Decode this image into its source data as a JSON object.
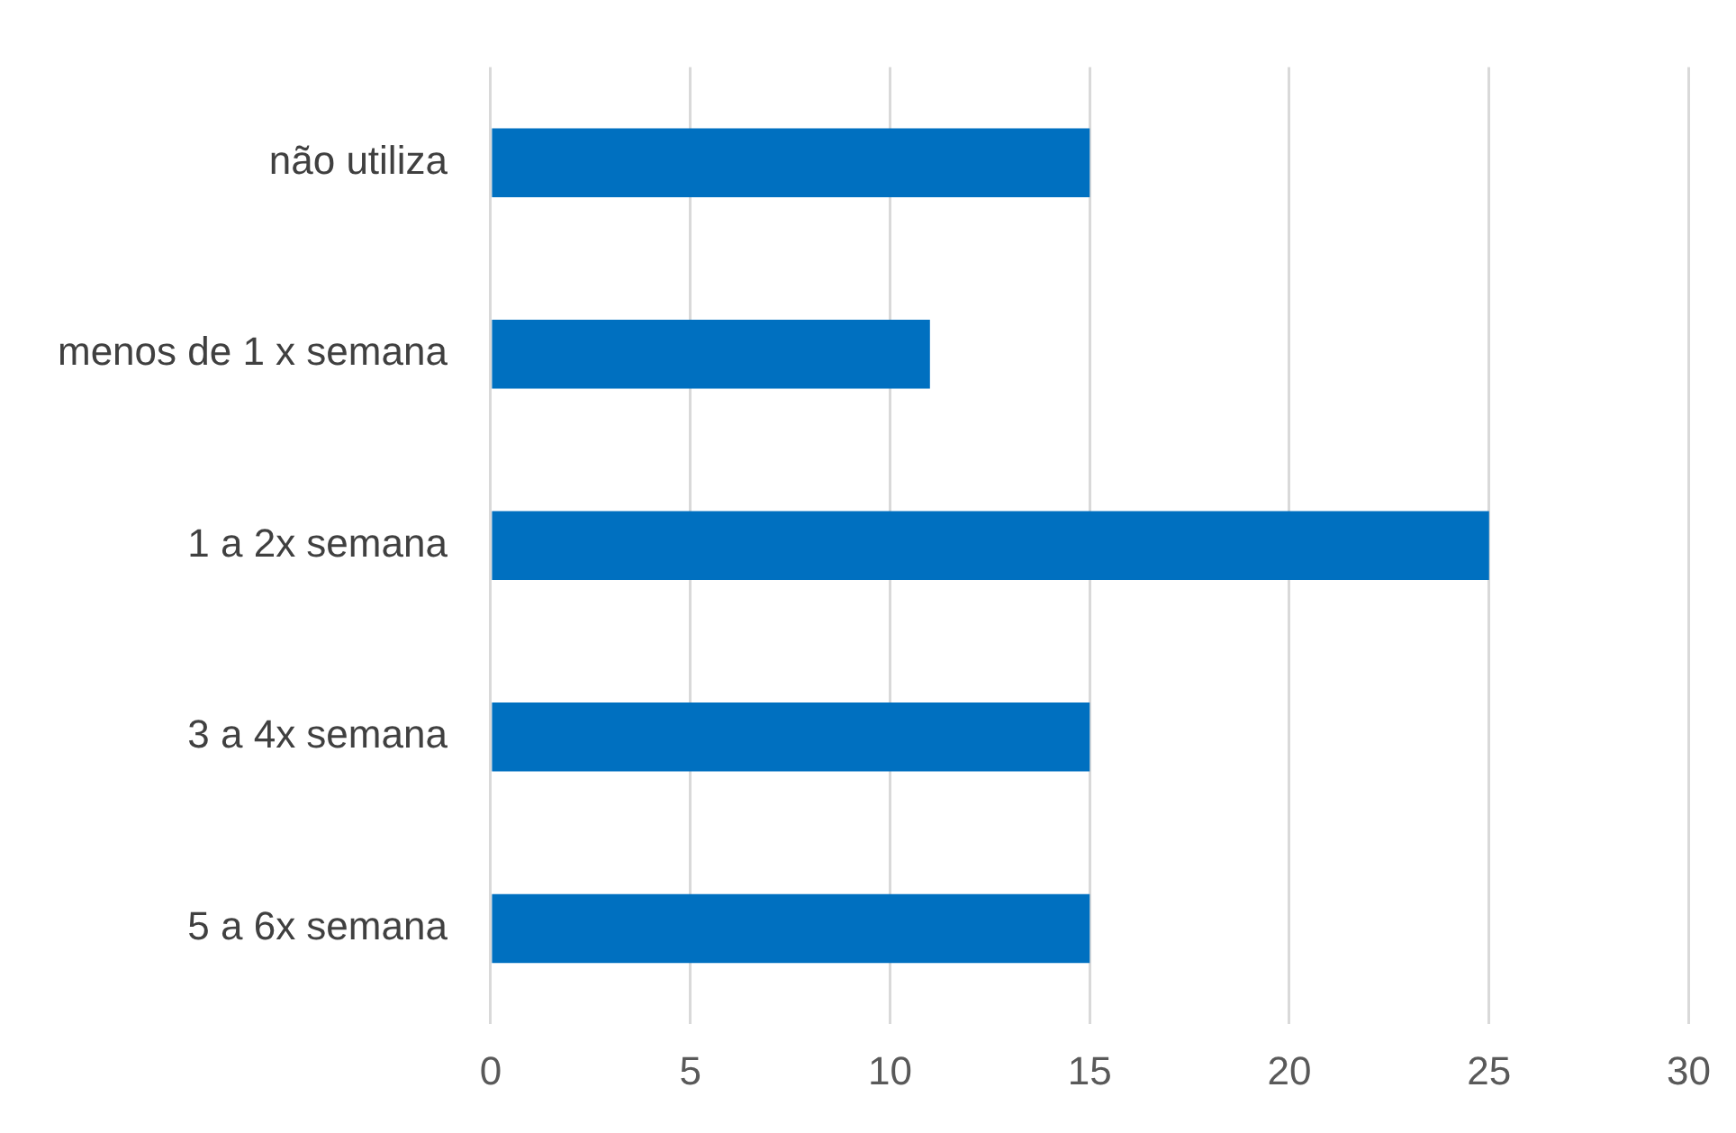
{
  "chart_data": {
    "type": "bar",
    "orientation": "horizontal",
    "categories": [
      "não utiliza",
      "menos de 1 x semana",
      "1 a 2x semana",
      "3 a 4x semana",
      "5 a 6x semana"
    ],
    "values": [
      15,
      11,
      25,
      15,
      15
    ],
    "color": "#0070c0",
    "xlim": [
      0,
      30
    ],
    "xticks": [
      0,
      5,
      10,
      15,
      20,
      25,
      30
    ],
    "grid": "x"
  }
}
